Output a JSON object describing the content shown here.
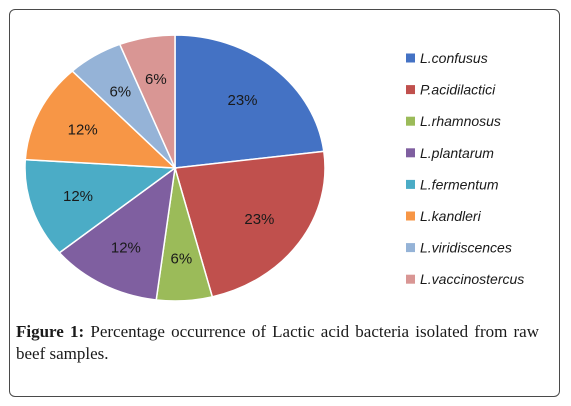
{
  "chart_data": {
    "type": "pie",
    "categories": [
      "L.confusus",
      "P.acidilactici",
      "L.rhamnosus",
      "L.plantarum",
      "L.fermentum",
      "L.kandleri",
      "L.viridiscences",
      "L.vaccinostercus"
    ],
    "values": [
      23,
      23,
      6,
      12,
      12,
      12,
      6,
      6
    ],
    "labels": [
      "23%",
      "23%",
      "6%",
      "12%",
      "12%",
      "12%",
      "6%",
      "6%"
    ],
    "colors": [
      "#4472C4",
      "#C0504D",
      "#9BBB59",
      "#7F5FA0",
      "#4BACC6",
      "#F79646",
      "#95B3D7",
      "#D99694"
    ],
    "legend": "right",
    "start_angle_deg": 0,
    "direction": "clockwise"
  },
  "caption": {
    "figure_label": "Figure 1:",
    "text": " Percentage occurrence of Lactic acid bacteria isolated from raw beef samples."
  }
}
